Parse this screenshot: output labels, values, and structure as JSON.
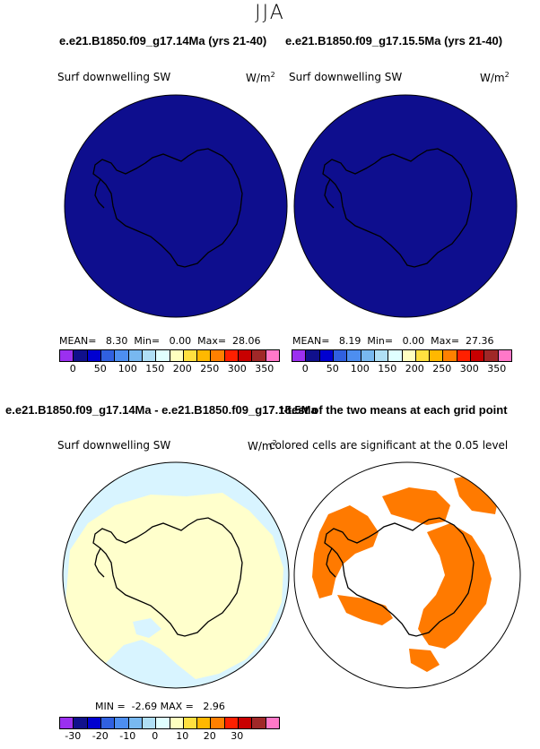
{
  "season": "JJA",
  "panels": {
    "case1_title": "e.e21.B1850.f09_g17.14Ma (yrs 21-40)",
    "case2_title": "e.e21.B1850.f09_g17.15.5Ma (yrs 21-40)",
    "variable": "Surf downwelling SW",
    "units": "W/m",
    "units_exp": "2",
    "diff_title": "e.e21.B1850.f09_g17.14Ma - e.e21.B1850.f09_g17.15.5Ma",
    "ttest_title": "t-test of the two means at each grid point",
    "ttest_note": "colored cells are significant at the 0.05 level"
  },
  "stats": {
    "case1": "MEAN=   8.30  Min=   0.00  Max=  28.06",
    "case2": "MEAN=   8.19  Min=   0.00  Max=  27.36",
    "diff": "MIN =  -2.69 MAX =   2.96"
  },
  "colorbars": {
    "abs_colors": [
      "#9b30f0",
      "#10108c",
      "#0000d0",
      "#3060e0",
      "#4d8ef0",
      "#78b8f0",
      "#b0dff5",
      "#e0ffff",
      "#ffffc0",
      "#ffe040",
      "#ffb800",
      "#ff8000",
      "#ff2000",
      "#c80000",
      "#a02828",
      "#ff78c8"
    ],
    "abs_ticks": [
      "0",
      "50",
      "100",
      "150",
      "200",
      "250",
      "300",
      "350"
    ],
    "diff_colors": [
      "#9b30f0",
      "#10108c",
      "#0000d0",
      "#3060e0",
      "#4d8ef0",
      "#78b8f0",
      "#b0dff5",
      "#e0ffff",
      "#ffffc0",
      "#ffe040",
      "#ffb800",
      "#ff8000",
      "#ff2000",
      "#c80000",
      "#a02828",
      "#ff78c8"
    ],
    "diff_ticks": [
      "-30",
      "-20",
      "-10",
      "0",
      "10",
      "20",
      "30"
    ]
  },
  "map_colors": {
    "case_fill": "#0e0e8e",
    "diff_main": "#ffffcc",
    "diff_outer": "#d8f4ff",
    "ttest_fill": "#ff7a00",
    "outline": "#000000"
  },
  "chart_data": [
    {
      "type": "heatmap",
      "title": "e.e21.B1850.f09_g17.14Ma (yrs 21-40)",
      "variable": "Surf downwelling SW",
      "units": "W/m2",
      "mean": 8.3,
      "min": 0.0,
      "max": 28.06,
      "colorbar_ticks": [
        0,
        50,
        100,
        150,
        200,
        250,
        300,
        350
      ]
    },
    {
      "type": "heatmap",
      "title": "e.e21.B1850.f09_g17.15.5Ma (yrs 21-40)",
      "variable": "Surf downwelling SW",
      "units": "W/m2",
      "mean": 8.19,
      "min": 0.0,
      "max": 27.36,
      "colorbar_ticks": [
        0,
        50,
        100,
        150,
        200,
        250,
        300,
        350
      ]
    },
    {
      "type": "heatmap",
      "title": "e.e21.B1850.f09_g17.14Ma - e.e21.B1850.f09_g17.15.5Ma",
      "variable": "Surf downwelling SW",
      "units": "W/m2",
      "min": -2.69,
      "max": 2.96,
      "colorbar_ticks": [
        -30,
        -20,
        -10,
        0,
        10,
        20,
        30
      ]
    },
    {
      "type": "heatmap",
      "title": "t-test of the two means at each grid point",
      "note": "colored cells are significant at the 0.05 level"
    }
  ]
}
